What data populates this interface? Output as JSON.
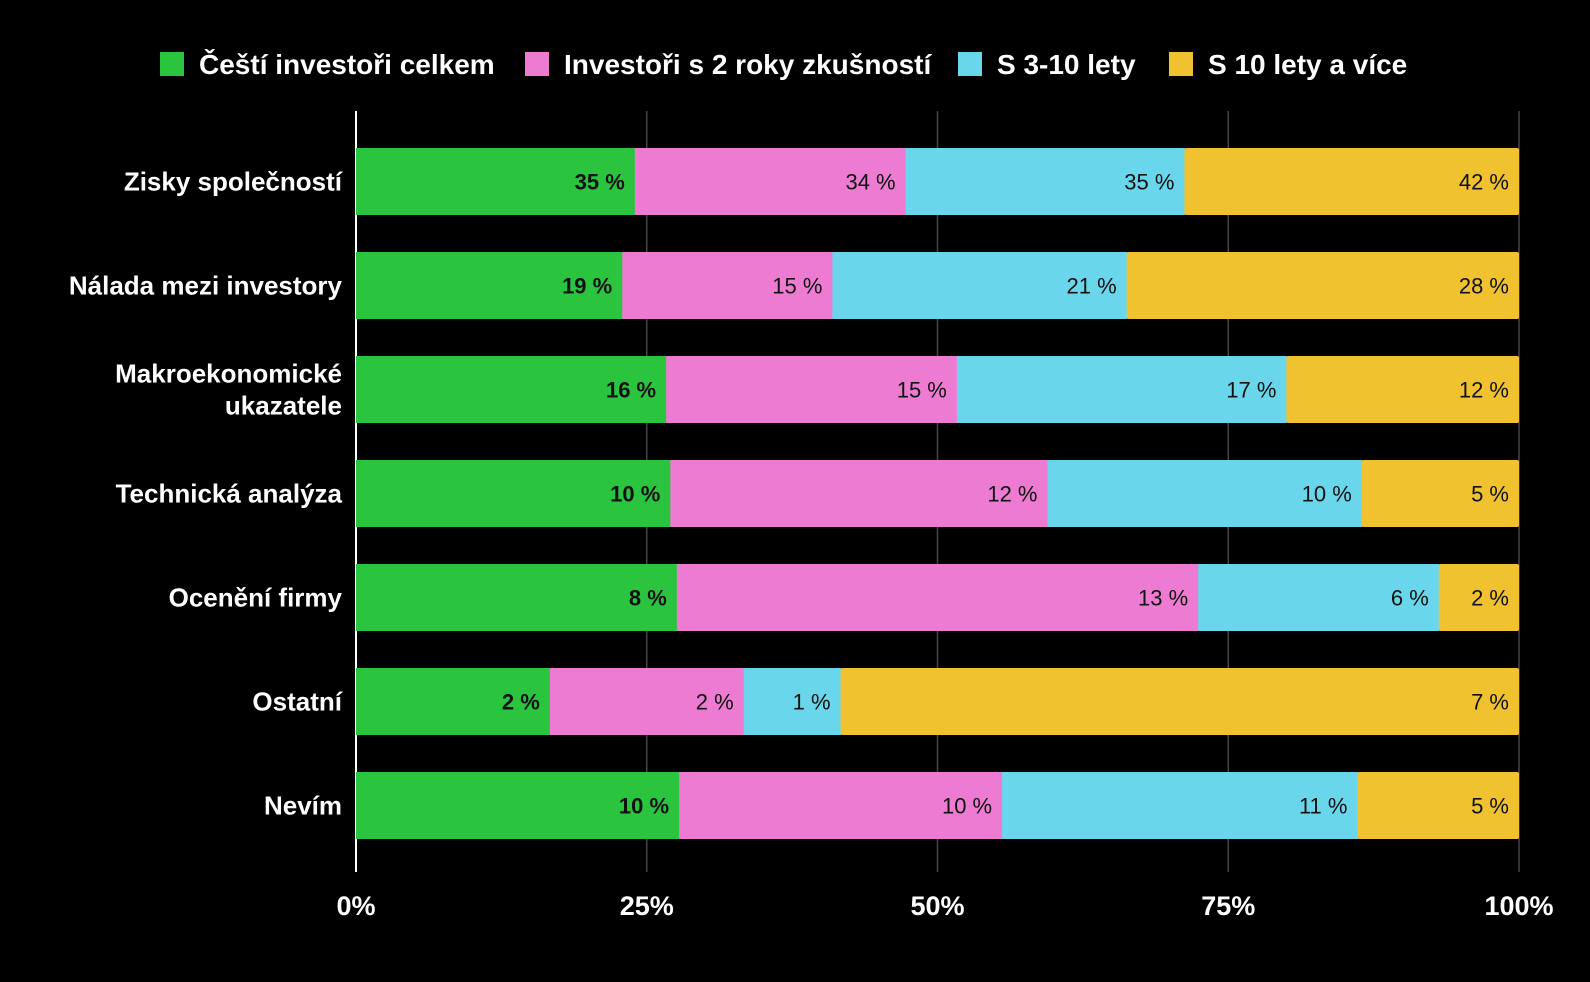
{
  "chart_data": {
    "type": "bar",
    "orientation": "horizontal",
    "stacked": "percent",
    "categories": [
      [
        "Zisky společností"
      ],
      [
        "Nálada mezi investory"
      ],
      [
        "Makroekonomické",
        "ukazatele"
      ],
      [
        "Technická analýza"
      ],
      [
        "Ocenění firmy"
      ],
      [
        "Ostatní"
      ],
      [
        "Nevím"
      ]
    ],
    "series": [
      {
        "name": "Čeští investoři celkem",
        "color": "#2ac43f",
        "values": [
          35,
          19,
          16,
          10,
          8,
          2,
          10
        ],
        "labels": [
          "35 %",
          "19 %",
          "16 %",
          "10 %",
          "8 %",
          "2 %",
          "10 %"
        ],
        "label_bold": true
      },
      {
        "name": "Investoři s 2 roky zkušností",
        "color": "#ec7bd1",
        "values": [
          34,
          15,
          15,
          12,
          13,
          2,
          10
        ],
        "labels": [
          "34 %",
          "15 %",
          "15 %",
          "12 %",
          "13 %",
          "2 %",
          "10 %"
        ],
        "label_bold": false
      },
      {
        "name": "S 3-10 lety",
        "color": "#6ad6ec",
        "values": [
          35,
          21,
          17,
          10,
          6,
          1,
          11
        ],
        "labels": [
          "35 %",
          "21 %",
          "17 %",
          "10 %",
          "6 %",
          "1 %",
          "11 %"
        ],
        "label_bold": false
      },
      {
        "name": "S 10 lety a více",
        "color": "#f0c230",
        "values": [
          42,
          28,
          12,
          5,
          2,
          7,
          5
        ],
        "labels": [
          "42 %",
          "28 %",
          "12 %",
          "5 %",
          "2 %",
          "7 %",
          "5 %"
        ],
        "label_bold": false
      }
    ],
    "xlim": [
      0,
      100
    ],
    "xticks": [
      "0%",
      "25%",
      "50%",
      "75%",
      "100%"
    ],
    "grid": true,
    "legend_position": "top",
    "colors": {
      "background": "#000000",
      "text": "#ffffff",
      "label_text": "#111111",
      "grid": "#444444",
      "axis": "#ffffff"
    }
  }
}
